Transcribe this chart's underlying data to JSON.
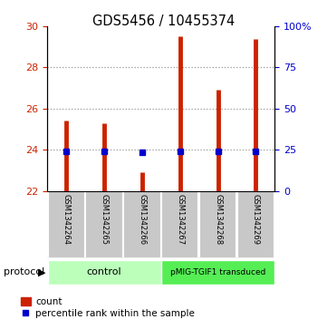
{
  "title": "GDS5456 / 10455374",
  "samples": [
    "GSM1342264",
    "GSM1342265",
    "GSM1342266",
    "GSM1342267",
    "GSM1342268",
    "GSM1342269"
  ],
  "counts": [
    25.4,
    25.3,
    22.9,
    29.5,
    26.9,
    29.4
  ],
  "percentiles": [
    24.0,
    24.0,
    23.7,
    24.1,
    24.0,
    24.1
  ],
  "ylim_left": [
    22,
    30
  ],
  "ylim_right": [
    0,
    100
  ],
  "yticks_left": [
    22,
    24,
    26,
    28,
    30
  ],
  "yticks_right": [
    0,
    25,
    50,
    75,
    100
  ],
  "ytick_labels_right": [
    "0",
    "25",
    "50",
    "75",
    "100%"
  ],
  "bar_color": "#cc2200",
  "dot_color": "#0000cc",
  "bar_base": 22.0,
  "control_label": "control",
  "treated_label": "pMIG-TGIF1 transduced",
  "control_color": "#bbffbb",
  "treated_color": "#55ee55",
  "sample_bg_color": "#c8c8c8",
  "legend_count_label": "count",
  "legend_pct_label": "percentile rank within the sample",
  "protocol_label": "protocol",
  "grid_color": "#999999",
  "fig_bg": "#ffffff",
  "grid_lines": [
    24,
    26,
    28
  ],
  "bar_linewidth": 3.5
}
